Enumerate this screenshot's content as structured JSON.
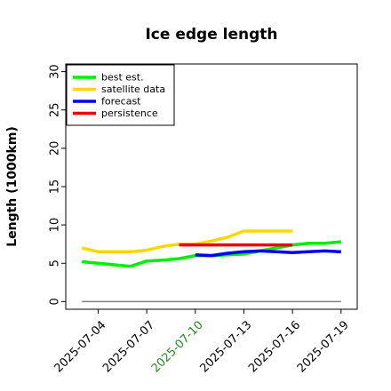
{
  "chart_data": {
    "type": "line",
    "title": "Ice edge length",
    "xlabel": "",
    "ylabel": "Length (1000km)",
    "xlim": [
      "2025-07-02",
      "2025-07-20"
    ],
    "ylim": [
      -1,
      31
    ],
    "yticks": [
      0,
      5,
      10,
      15,
      20,
      25,
      30
    ],
    "xticks": [
      {
        "date": "2025-07-04",
        "label": "2025-07-04",
        "color": "#000000"
      },
      {
        "date": "2025-07-07",
        "label": "2025-07-07",
        "color": "#000000"
      },
      {
        "date": "2025-07-10",
        "label": "2025-07-10",
        "color": "#228B22"
      },
      {
        "date": "2025-07-13",
        "label": "2025-07-13",
        "color": "#000000"
      },
      {
        "date": "2025-07-16",
        "label": "2025-07-16",
        "color": "#000000"
      },
      {
        "date": "2025-07-19",
        "label": "2025-07-19",
        "color": "#000000"
      }
    ],
    "legend_position": "top-left",
    "grid": false,
    "series": [
      {
        "name": "best est.",
        "color": "#00ee00",
        "points": [
          {
            "x": "2025-07-03",
            "y": 5.2
          },
          {
            "x": "2025-07-04",
            "y": 5.0
          },
          {
            "x": "2025-07-05",
            "y": 4.8
          },
          {
            "x": "2025-07-06",
            "y": 4.6
          },
          {
            "x": "2025-07-07",
            "y": 5.3
          },
          {
            "x": "2025-07-08",
            "y": 5.4
          },
          {
            "x": "2025-07-09",
            "y": 5.6
          },
          {
            "x": "2025-07-10",
            "y": 6.0
          },
          {
            "x": "2025-07-11",
            "y": 6.0
          },
          {
            "x": "2025-07-12",
            "y": 6.1
          },
          {
            "x": "2025-07-13",
            "y": 6.2
          },
          {
            "x": "2025-07-14",
            "y": 6.6
          },
          {
            "x": "2025-07-15",
            "y": 7.0
          },
          {
            "x": "2025-07-16",
            "y": 7.4
          },
          {
            "x": "2025-07-17",
            "y": 7.6
          },
          {
            "x": "2025-07-18",
            "y": 7.6
          },
          {
            "x": "2025-07-19",
            "y": 7.8
          }
        ]
      },
      {
        "name": "satellite data",
        "color": "#ffd700",
        "points": [
          {
            "x": "2025-07-03",
            "y": 7.0
          },
          {
            "x": "2025-07-04",
            "y": 6.5
          },
          {
            "x": "2025-07-05",
            "y": 6.5
          },
          {
            "x": "2025-07-06",
            "y": 6.5
          },
          {
            "x": "2025-07-07",
            "y": 6.7
          },
          {
            "x": "2025-07-08",
            "y": 7.2
          },
          {
            "x": "2025-07-09",
            "y": 7.5
          },
          {
            "x": "2025-07-10",
            "y": 7.5
          },
          {
            "x": "2025-07-11",
            "y": 7.9
          },
          {
            "x": "2025-07-12",
            "y": 8.4
          },
          {
            "x": "2025-07-13",
            "y": 9.2
          },
          {
            "x": "2025-07-14",
            "y": 9.2
          },
          {
            "x": "2025-07-15",
            "y": 9.2
          },
          {
            "x": "2025-07-16",
            "y": 9.2
          }
        ]
      },
      {
        "name": "forecast",
        "color": "#0000ee",
        "points": [
          {
            "x": "2025-07-10",
            "y": 6.1
          },
          {
            "x": "2025-07-11",
            "y": 6.0
          },
          {
            "x": "2025-07-12",
            "y": 6.3
          },
          {
            "x": "2025-07-13",
            "y": 6.5
          },
          {
            "x": "2025-07-14",
            "y": 6.6
          },
          {
            "x": "2025-07-15",
            "y": 6.5
          },
          {
            "x": "2025-07-16",
            "y": 6.4
          },
          {
            "x": "2025-07-17",
            "y": 6.5
          },
          {
            "x": "2025-07-18",
            "y": 6.6
          },
          {
            "x": "2025-07-19",
            "y": 6.5
          }
        ]
      },
      {
        "name": "persistence",
        "color": "#ee0000",
        "points": [
          {
            "x": "2025-07-09",
            "y": 7.4
          },
          {
            "x": "2025-07-16",
            "y": 7.4
          }
        ]
      }
    ],
    "reference_line": {
      "y": 0,
      "from": "2025-07-03",
      "to": "2025-07-19",
      "color": "#808080"
    }
  }
}
